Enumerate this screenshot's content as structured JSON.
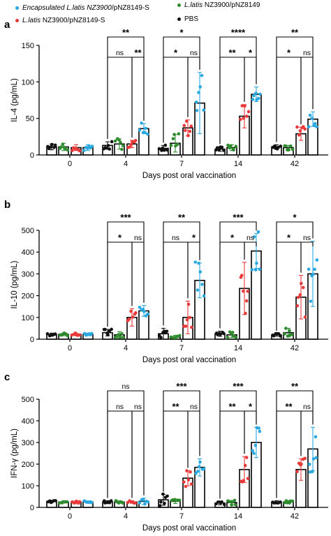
{
  "legend": {
    "items": [
      {
        "label_italic": "Encapsulated L.latis NZ3900",
        "label_rest": "/pNZ8149-S",
        "color": "#2aa8e0"
      },
      {
        "label_italic": "L.latis",
        "label_rest": " NZ3900/pNZ8149-S",
        "color": "#e83a3a"
      },
      {
        "label_italic": "L.latis",
        "label_rest": " NZ3900/pNZ8149",
        "color": "#2e8b2e"
      },
      {
        "label_italic": "",
        "label_rest": "PBS",
        "color": "#111111"
      }
    ]
  },
  "chart_data": [
    {
      "panel": "a",
      "type": "bar",
      "ylabel": "IL-4 (pg/mL)",
      "xlabel": "Days post oral vaccination",
      "ylim": [
        0,
        150
      ],
      "yticks": [
        0,
        50,
        100,
        150
      ],
      "categories": [
        "0",
        "4",
        "7",
        "14",
        "42"
      ],
      "series": [
        {
          "name": "PBS",
          "color": "#111111",
          "values": [
            11,
            13,
            9,
            8,
            11
          ],
          "err": [
            4,
            5,
            4,
            3,
            3
          ]
        },
        {
          "name": "L.latis NZ3900/pNZ8149",
          "color": "#2e8b2e",
          "values": [
            11,
            15,
            16,
            10,
            10
          ],
          "err": [
            5,
            7,
            12,
            4,
            3
          ]
        },
        {
          "name": "L.latis NZ3900/pNZ8149-S",
          "color": "#e83a3a",
          "values": [
            10,
            15,
            37,
            53,
            29
          ],
          "err": [
            4,
            5,
            11,
            16,
            9
          ]
        },
        {
          "name": "Encapsulated L.latis NZ3900/pNZ8149-S",
          "color": "#2aa8e0",
          "values": [
            10,
            36,
            71,
            83,
            49
          ],
          "err": [
            4,
            7,
            42,
            10,
            10
          ]
        }
      ],
      "brackets": [
        {
          "group": 1,
          "from": 0,
          "to": 3,
          "level": 2,
          "text": "**"
        },
        {
          "group": 1,
          "from": 0,
          "to": 2,
          "level": 1,
          "text": "ns"
        },
        {
          "group": 1,
          "from": 2,
          "to": 3,
          "level": 1,
          "text": "**"
        },
        {
          "group": 2,
          "from": 0,
          "to": 3,
          "level": 2,
          "text": "*"
        },
        {
          "group": 2,
          "from": 0,
          "to": 2,
          "level": 1,
          "text": "*"
        },
        {
          "group": 2,
          "from": 2,
          "to": 3,
          "level": 1,
          "text": "ns"
        },
        {
          "group": 3,
          "from": 0,
          "to": 3,
          "level": 2,
          "text": "****"
        },
        {
          "group": 3,
          "from": 0,
          "to": 2,
          "level": 1,
          "text": "**"
        },
        {
          "group": 3,
          "from": 2,
          "to": 3,
          "level": 1,
          "text": "*"
        },
        {
          "group": 4,
          "from": 0,
          "to": 3,
          "level": 2,
          "text": "**"
        },
        {
          "group": 4,
          "from": 0,
          "to": 2,
          "level": 1,
          "text": "*"
        },
        {
          "group": 4,
          "from": 2,
          "to": 3,
          "level": 1,
          "text": "ns"
        }
      ]
    },
    {
      "panel": "b",
      "type": "bar",
      "ylabel": "IL-10 (pg/mL)",
      "xlabel": "Days post oral vaccination",
      "ylim": [
        0,
        500
      ],
      "yticks": [
        0,
        100,
        200,
        300,
        400,
        500
      ],
      "categories": [
        "0",
        "4",
        "7",
        "14",
        "42"
      ],
      "series": [
        {
          "name": "PBS",
          "color": "#111111",
          "values": [
            22,
            30,
            25,
            25,
            20
          ],
          "err": [
            6,
            15,
            25,
            12,
            6
          ]
        },
        {
          "name": "L.latis NZ3900/pNZ8149",
          "color": "#2e8b2e",
          "values": [
            22,
            20,
            10,
            20,
            30
          ],
          "err": [
            6,
            15,
            8,
            12,
            20
          ]
        },
        {
          "name": "L.latis NZ3900/pNZ8149-S",
          "color": "#e83a3a",
          "values": [
            22,
            100,
            100,
            233,
            193
          ],
          "err": [
            6,
            40,
            75,
            120,
            100
          ]
        },
        {
          "name": "Encapsulated L.latis NZ3900/pNZ8149-S",
          "color": "#2aa8e0",
          "values": [
            22,
            130,
            270,
            405,
            300
          ],
          "err": [
            6,
            25,
            80,
            80,
            150
          ]
        }
      ],
      "brackets": [
        {
          "group": 1,
          "from": 0,
          "to": 3,
          "level": 2,
          "text": "***"
        },
        {
          "group": 1,
          "from": 0,
          "to": 2,
          "level": 1,
          "text": "*"
        },
        {
          "group": 1,
          "from": 2,
          "to": 3,
          "level": 1,
          "text": "ns"
        },
        {
          "group": 2,
          "from": 0,
          "to": 3,
          "level": 2,
          "text": "**"
        },
        {
          "group": 2,
          "from": 0,
          "to": 2,
          "level": 1,
          "text": "ns"
        },
        {
          "group": 2,
          "from": 2,
          "to": 3,
          "level": 1,
          "text": "*"
        },
        {
          "group": 3,
          "from": 0,
          "to": 3,
          "level": 2,
          "text": "***"
        },
        {
          "group": 3,
          "from": 0,
          "to": 2,
          "level": 1,
          "text": "*"
        },
        {
          "group": 3,
          "from": 2,
          "to": 3,
          "level": 1,
          "text": "ns"
        },
        {
          "group": 4,
          "from": 0,
          "to": 3,
          "level": 2,
          "text": "*"
        },
        {
          "group": 4,
          "from": 0,
          "to": 2,
          "level": 1,
          "text": "*"
        },
        {
          "group": 4,
          "from": 2,
          "to": 3,
          "level": 1,
          "text": "ns"
        }
      ]
    },
    {
      "panel": "c",
      "type": "bar",
      "ylabel": "IFN-γ (pg/mL)",
      "xlabel": "Days post oral vaccination",
      "ylim": [
        0,
        500
      ],
      "yticks": [
        0,
        100,
        200,
        300,
        400,
        500
      ],
      "categories": [
        "0",
        "4",
        "7",
        "14",
        "42"
      ],
      "series": [
        {
          "name": "PBS",
          "color": "#111111",
          "values": [
            28,
            25,
            35,
            20,
            25
          ],
          "err": [
            5,
            6,
            25,
            8,
            6
          ]
        },
        {
          "name": "L.latis NZ3900/pNZ8149",
          "color": "#2e8b2e",
          "values": [
            25,
            25,
            28,
            22,
            25
          ],
          "err": [
            5,
            6,
            10,
            10,
            6
          ]
        },
        {
          "name": "L.latis NZ3900/pNZ8149-S",
          "color": "#e83a3a",
          "values": [
            25,
            25,
            135,
            175,
            175
          ],
          "err": [
            5,
            6,
            35,
            60,
            50
          ]
        },
        {
          "name": "Encapsulated L.latis NZ3900/pNZ8149-S",
          "color": "#2aa8e0",
          "values": [
            25,
            28,
            185,
            300,
            270
          ],
          "err": [
            5,
            15,
            40,
            70,
            100
          ]
        }
      ],
      "brackets": [
        {
          "group": 1,
          "from": 0,
          "to": 3,
          "level": 2,
          "text": "ns"
        },
        {
          "group": 1,
          "from": 0,
          "to": 2,
          "level": 1,
          "text": "ns"
        },
        {
          "group": 1,
          "from": 2,
          "to": 3,
          "level": 1,
          "text": "ns"
        },
        {
          "group": 2,
          "from": 0,
          "to": 3,
          "level": 2,
          "text": "***"
        },
        {
          "group": 2,
          "from": 0,
          "to": 2,
          "level": 1,
          "text": "**"
        },
        {
          "group": 2,
          "from": 2,
          "to": 3,
          "level": 1,
          "text": "ns"
        },
        {
          "group": 3,
          "from": 0,
          "to": 3,
          "level": 2,
          "text": "***"
        },
        {
          "group": 3,
          "from": 0,
          "to": 2,
          "level": 1,
          "text": "**"
        },
        {
          "group": 3,
          "from": 2,
          "to": 3,
          "level": 1,
          "text": "*"
        },
        {
          "group": 4,
          "from": 0,
          "to": 3,
          "level": 2,
          "text": "**"
        },
        {
          "group": 4,
          "from": 0,
          "to": 2,
          "level": 1,
          "text": "**"
        },
        {
          "group": 4,
          "from": 2,
          "to": 3,
          "level": 1,
          "text": "ns"
        }
      ]
    }
  ]
}
